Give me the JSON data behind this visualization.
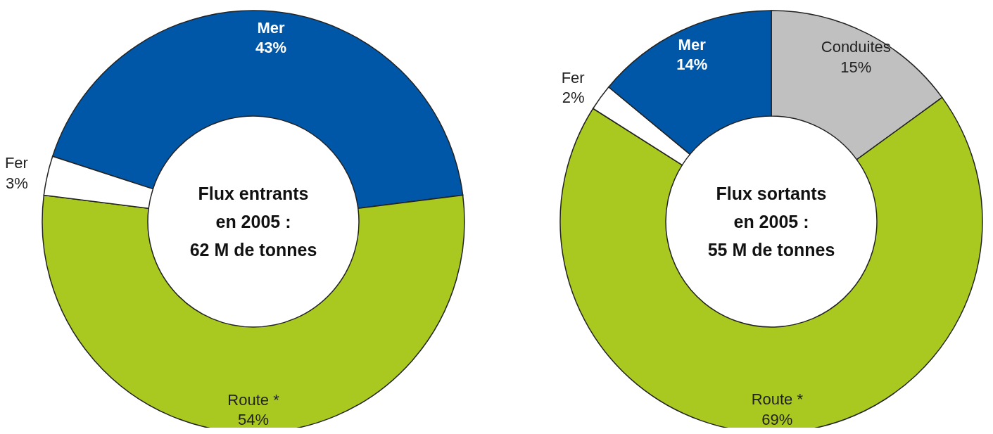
{
  "chart_data": [
    {
      "type": "donut",
      "title": "Flux entrants\nen 2005 :\n62 M de tonnes",
      "categories": [
        "Mer",
        "Route *",
        "Fer"
      ],
      "values": [
        43,
        54,
        3
      ],
      "colors": [
        "#0057a8",
        "#a9c920",
        "#ffffff"
      ],
      "value_labels": [
        "43%",
        "54%",
        "3%"
      ]
    },
    {
      "type": "donut",
      "title": "Flux sortants\nen 2005 :\n55 M de tonnes",
      "categories": [
        "Conduites",
        "Route *",
        "Fer",
        "Mer"
      ],
      "values": [
        15,
        69,
        2,
        14
      ],
      "colors": [
        "#c0c0c0",
        "#a9c920",
        "#ffffff",
        "#0057a8"
      ],
      "value_labels": [
        "15%",
        "69%",
        "2%",
        "14%"
      ]
    }
  ]
}
